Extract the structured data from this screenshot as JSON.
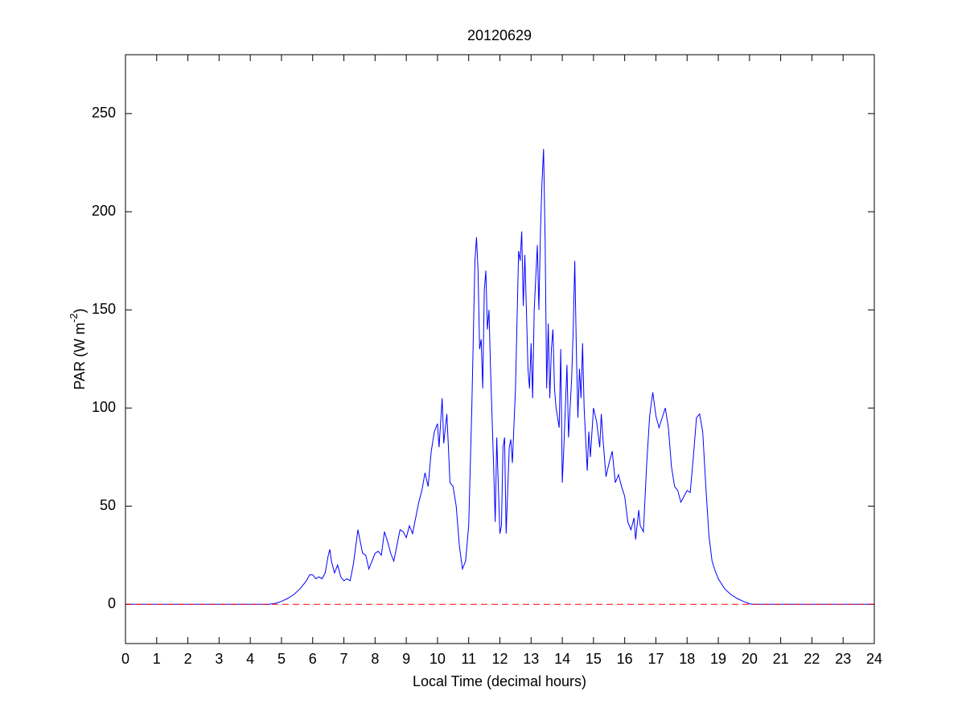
{
  "chart_data": {
    "type": "line",
    "title": "20120629",
    "xlabel": "Local Time (decimal hours)",
    "ylabel": {
      "text": "PAR (W m",
      "superscript": "-2",
      "suffix": ")"
    },
    "xlim": [
      0,
      24
    ],
    "ylim": [
      -20,
      280
    ],
    "xticks": [
      0,
      1,
      2,
      3,
      4,
      5,
      6,
      7,
      8,
      9,
      10,
      11,
      12,
      13,
      14,
      15,
      16,
      17,
      18,
      19,
      20,
      21,
      22,
      23,
      24
    ],
    "yticks": [
      0,
      50,
      100,
      150,
      200,
      250
    ],
    "grid": false,
    "reference_line": {
      "y": 0,
      "color": "#ff0000",
      "style": "dashed"
    },
    "series": [
      {
        "color": "#0000ff",
        "x": [
          0,
          4.6,
          4.8,
          5.0,
          5.2,
          5.4,
          5.6,
          5.8,
          5.9,
          6.0,
          6.1,
          6.2,
          6.3,
          6.4,
          6.5,
          6.55,
          6.6,
          6.7,
          6.8,
          6.9,
          7.0,
          7.1,
          7.2,
          7.3,
          7.4,
          7.45,
          7.5,
          7.6,
          7.7,
          7.8,
          7.9,
          8.0,
          8.1,
          8.2,
          8.3,
          8.4,
          8.5,
          8.6,
          8.7,
          8.8,
          8.9,
          9.0,
          9.1,
          9.2,
          9.3,
          9.4,
          9.5,
          9.6,
          9.7,
          9.8,
          9.9,
          10.0,
          10.05,
          10.15,
          10.2,
          10.3,
          10.35,
          10.4,
          10.5,
          10.6,
          10.7,
          10.8,
          10.9,
          11.0,
          11.1,
          11.2,
          11.25,
          11.3,
          11.35,
          11.4,
          11.45,
          11.5,
          11.55,
          11.6,
          11.65,
          11.7,
          11.8,
          11.85,
          11.9,
          11.95,
          12.0,
          12.05,
          12.1,
          12.15,
          12.2,
          12.3,
          12.35,
          12.4,
          12.5,
          12.6,
          12.65,
          12.7,
          12.75,
          12.8,
          12.85,
          12.9,
          12.95,
          13.0,
          13.05,
          13.1,
          13.2,
          13.25,
          13.3,
          13.35,
          13.4,
          13.45,
          13.5,
          13.55,
          13.6,
          13.65,
          13.7,
          13.75,
          13.8,
          13.9,
          13.95,
          14.0,
          14.05,
          14.15,
          14.2,
          14.3,
          14.35,
          14.4,
          14.45,
          14.5,
          14.55,
          14.6,
          14.65,
          14.7,
          14.8,
          14.85,
          14.9,
          15.0,
          15.1,
          15.2,
          15.25,
          15.3,
          15.4,
          15.5,
          15.6,
          15.7,
          15.8,
          15.9,
          16.0,
          16.1,
          16.2,
          16.3,
          16.35,
          16.45,
          16.5,
          16.6,
          16.7,
          16.8,
          16.9,
          17.0,
          17.1,
          17.2,
          17.3,
          17.4,
          17.5,
          17.6,
          17.7,
          17.8,
          17.9,
          18.0,
          18.1,
          18.2,
          18.3,
          18.4,
          18.5,
          18.6,
          18.7,
          18.8,
          18.9,
          19.0,
          19.2,
          19.4,
          19.6,
          19.8,
          20.0,
          20.1,
          24
        ],
        "values": [
          0,
          0,
          0.5,
          1.5,
          3,
          5,
          8,
          12,
          15,
          15,
          13,
          14,
          13,
          16,
          25,
          28,
          22,
          16,
          20,
          14,
          12,
          13,
          12,
          20,
          32,
          38,
          34,
          26,
          25,
          18,
          22,
          26,
          27,
          25,
          37,
          32,
          26,
          22,
          30,
          38,
          37,
          34,
          40,
          36,
          44,
          52,
          58,
          67,
          60,
          78,
          88,
          92,
          80,
          105,
          82,
          97,
          80,
          62,
          60,
          50,
          30,
          18,
          22,
          40,
          100,
          175,
          187,
          170,
          130,
          135,
          110,
          160,
          170,
          140,
          150,
          120,
          70,
          42,
          85,
          60,
          36,
          40,
          80,
          85,
          36,
          80,
          84,
          72,
          110,
          180,
          175,
          190,
          152,
          178,
          150,
          120,
          110,
          133,
          105,
          150,
          183,
          150,
          190,
          215,
          232,
          185,
          110,
          143,
          105,
          130,
          140,
          110,
          100,
          90,
          130,
          62,
          80,
          122,
          85,
          115,
          140,
          175,
          130,
          95,
          120,
          105,
          133,
          100,
          68,
          88,
          75,
          100,
          93,
          80,
          97,
          85,
          65,
          72,
          78,
          62,
          66,
          60,
          55,
          42,
          38,
          44,
          33,
          48,
          40,
          37,
          70,
          96,
          108,
          96,
          90,
          95,
          100,
          90,
          70,
          60,
          58,
          52,
          55,
          58,
          57,
          75,
          95,
          97,
          88,
          60,
          35,
          22,
          17,
          13,
          8,
          5,
          3,
          1.5,
          0.3,
          0,
          0
        ]
      }
    ]
  }
}
